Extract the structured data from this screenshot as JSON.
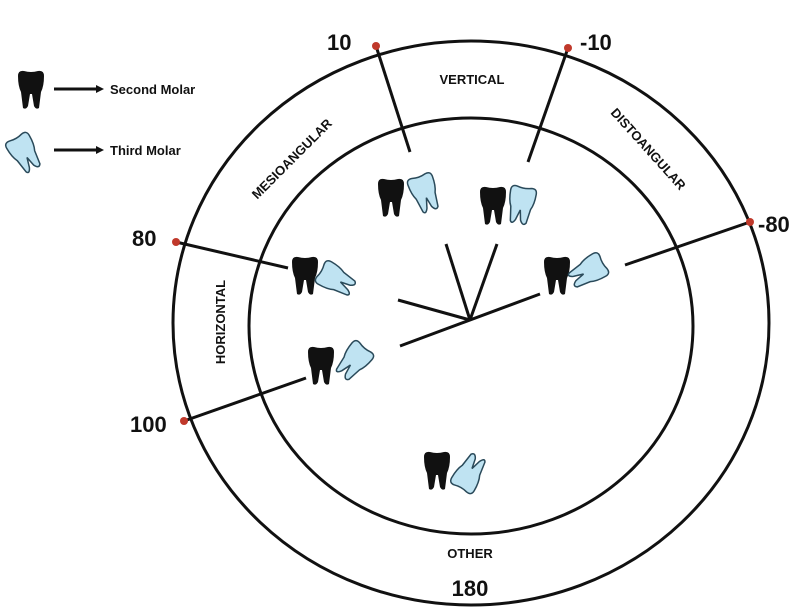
{
  "legend": [
    {
      "label": "Second Molar"
    },
    {
      "label": "Third Molar"
    }
  ],
  "angles": [
    "10",
    "-10",
    "80",
    "-80",
    "100",
    "180"
  ],
  "sectors": [
    "VERTICAL",
    "MESIOANGULAR",
    "DISTOANGULAR",
    "HORIZONTAL",
    "OTHER"
  ]
}
